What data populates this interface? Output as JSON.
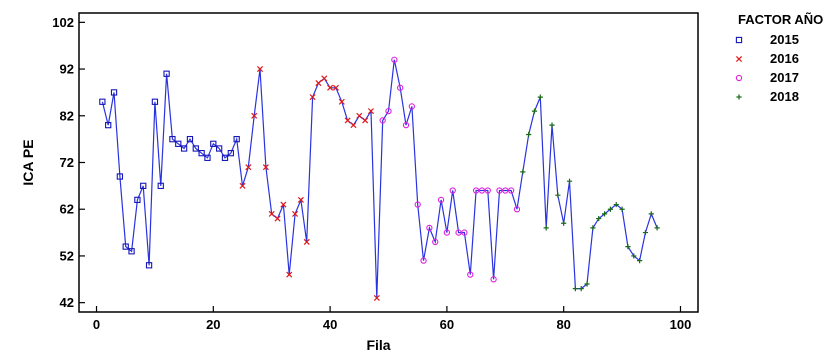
{
  "chart_data": {
    "type": "scatter",
    "title": "",
    "xlabel": "Fila",
    "ylabel": "ICA PE",
    "xlim": [
      -3,
      103
    ],
    "ylim": [
      40,
      104
    ],
    "xticks": [
      0,
      20,
      40,
      60,
      80,
      100
    ],
    "yticks": [
      42,
      52,
      62,
      72,
      82,
      92,
      102
    ],
    "grid": false,
    "connecting_line": true,
    "legend": {
      "title": "FACTOR AÑO",
      "position": "right"
    },
    "colors": {
      "line": "#2a33e0",
      "2015": "#1515b8",
      "2016": "#e01818",
      "2017": "#e020e0",
      "2018": "#1a6a1a"
    },
    "series": [
      {
        "name": "2015",
        "marker": "square",
        "points": [
          [
            1,
            85
          ],
          [
            2,
            80
          ],
          [
            3,
            87
          ],
          [
            4,
            69
          ],
          [
            5,
            54
          ],
          [
            6,
            53
          ],
          [
            7,
            64
          ],
          [
            8,
            67
          ],
          [
            9,
            50
          ],
          [
            10,
            85
          ],
          [
            11,
            67
          ],
          [
            12,
            91
          ],
          [
            13,
            77
          ],
          [
            14,
            76
          ],
          [
            15,
            75
          ],
          [
            16,
            77
          ],
          [
            17,
            75
          ],
          [
            18,
            74
          ],
          [
            19,
            73
          ],
          [
            20,
            76
          ],
          [
            21,
            75
          ],
          [
            22,
            73
          ],
          [
            23,
            74
          ],
          [
            24,
            77
          ]
        ]
      },
      {
        "name": "2016",
        "marker": "x",
        "points": [
          [
            25,
            67
          ],
          [
            26,
            71
          ],
          [
            27,
            82
          ],
          [
            28,
            92
          ],
          [
            29,
            71
          ],
          [
            30,
            61
          ],
          [
            31,
            60
          ],
          [
            32,
            63
          ],
          [
            33,
            48
          ],
          [
            34,
            61
          ],
          [
            35,
            64
          ],
          [
            36,
            55
          ],
          [
            37,
            86
          ],
          [
            38,
            89
          ],
          [
            39,
            90
          ],
          [
            40,
            88
          ],
          [
            41,
            88
          ],
          [
            42,
            85
          ],
          [
            43,
            81
          ],
          [
            44,
            80
          ],
          [
            45,
            82
          ],
          [
            46,
            81
          ],
          [
            47,
            83
          ],
          [
            48,
            43
          ]
        ]
      },
      {
        "name": "2017",
        "marker": "circle",
        "points": [
          [
            49,
            81
          ],
          [
            50,
            83
          ],
          [
            51,
            94
          ],
          [
            52,
            88
          ],
          [
            53,
            80
          ],
          [
            54,
            84
          ],
          [
            55,
            63
          ],
          [
            56,
            51
          ],
          [
            57,
            58
          ],
          [
            58,
            55
          ],
          [
            59,
            64
          ],
          [
            60,
            57
          ],
          [
            61,
            66
          ],
          [
            62,
            57
          ],
          [
            63,
            57
          ],
          [
            64,
            48
          ],
          [
            65,
            66
          ],
          [
            66,
            66
          ],
          [
            67,
            66
          ],
          [
            68,
            47
          ],
          [
            69,
            66
          ],
          [
            70,
            66
          ],
          [
            71,
            66
          ],
          [
            72,
            62
          ]
        ]
      },
      {
        "name": "2018",
        "marker": "plus",
        "points": [
          [
            73,
            70
          ],
          [
            74,
            78
          ],
          [
            75,
            83
          ],
          [
            76,
            86
          ],
          [
            77,
            58
          ],
          [
            78,
            80
          ],
          [
            79,
            65
          ],
          [
            80,
            59
          ],
          [
            81,
            68
          ],
          [
            82,
            45
          ],
          [
            83,
            45
          ],
          [
            84,
            46
          ],
          [
            85,
            58
          ],
          [
            86,
            60
          ],
          [
            87,
            61
          ],
          [
            88,
            62
          ],
          [
            89,
            63
          ],
          [
            90,
            62
          ],
          [
            91,
            54
          ],
          [
            92,
            52
          ],
          [
            93,
            51
          ],
          [
            94,
            57
          ],
          [
            95,
            61
          ],
          [
            96,
            58
          ]
        ]
      }
    ]
  }
}
